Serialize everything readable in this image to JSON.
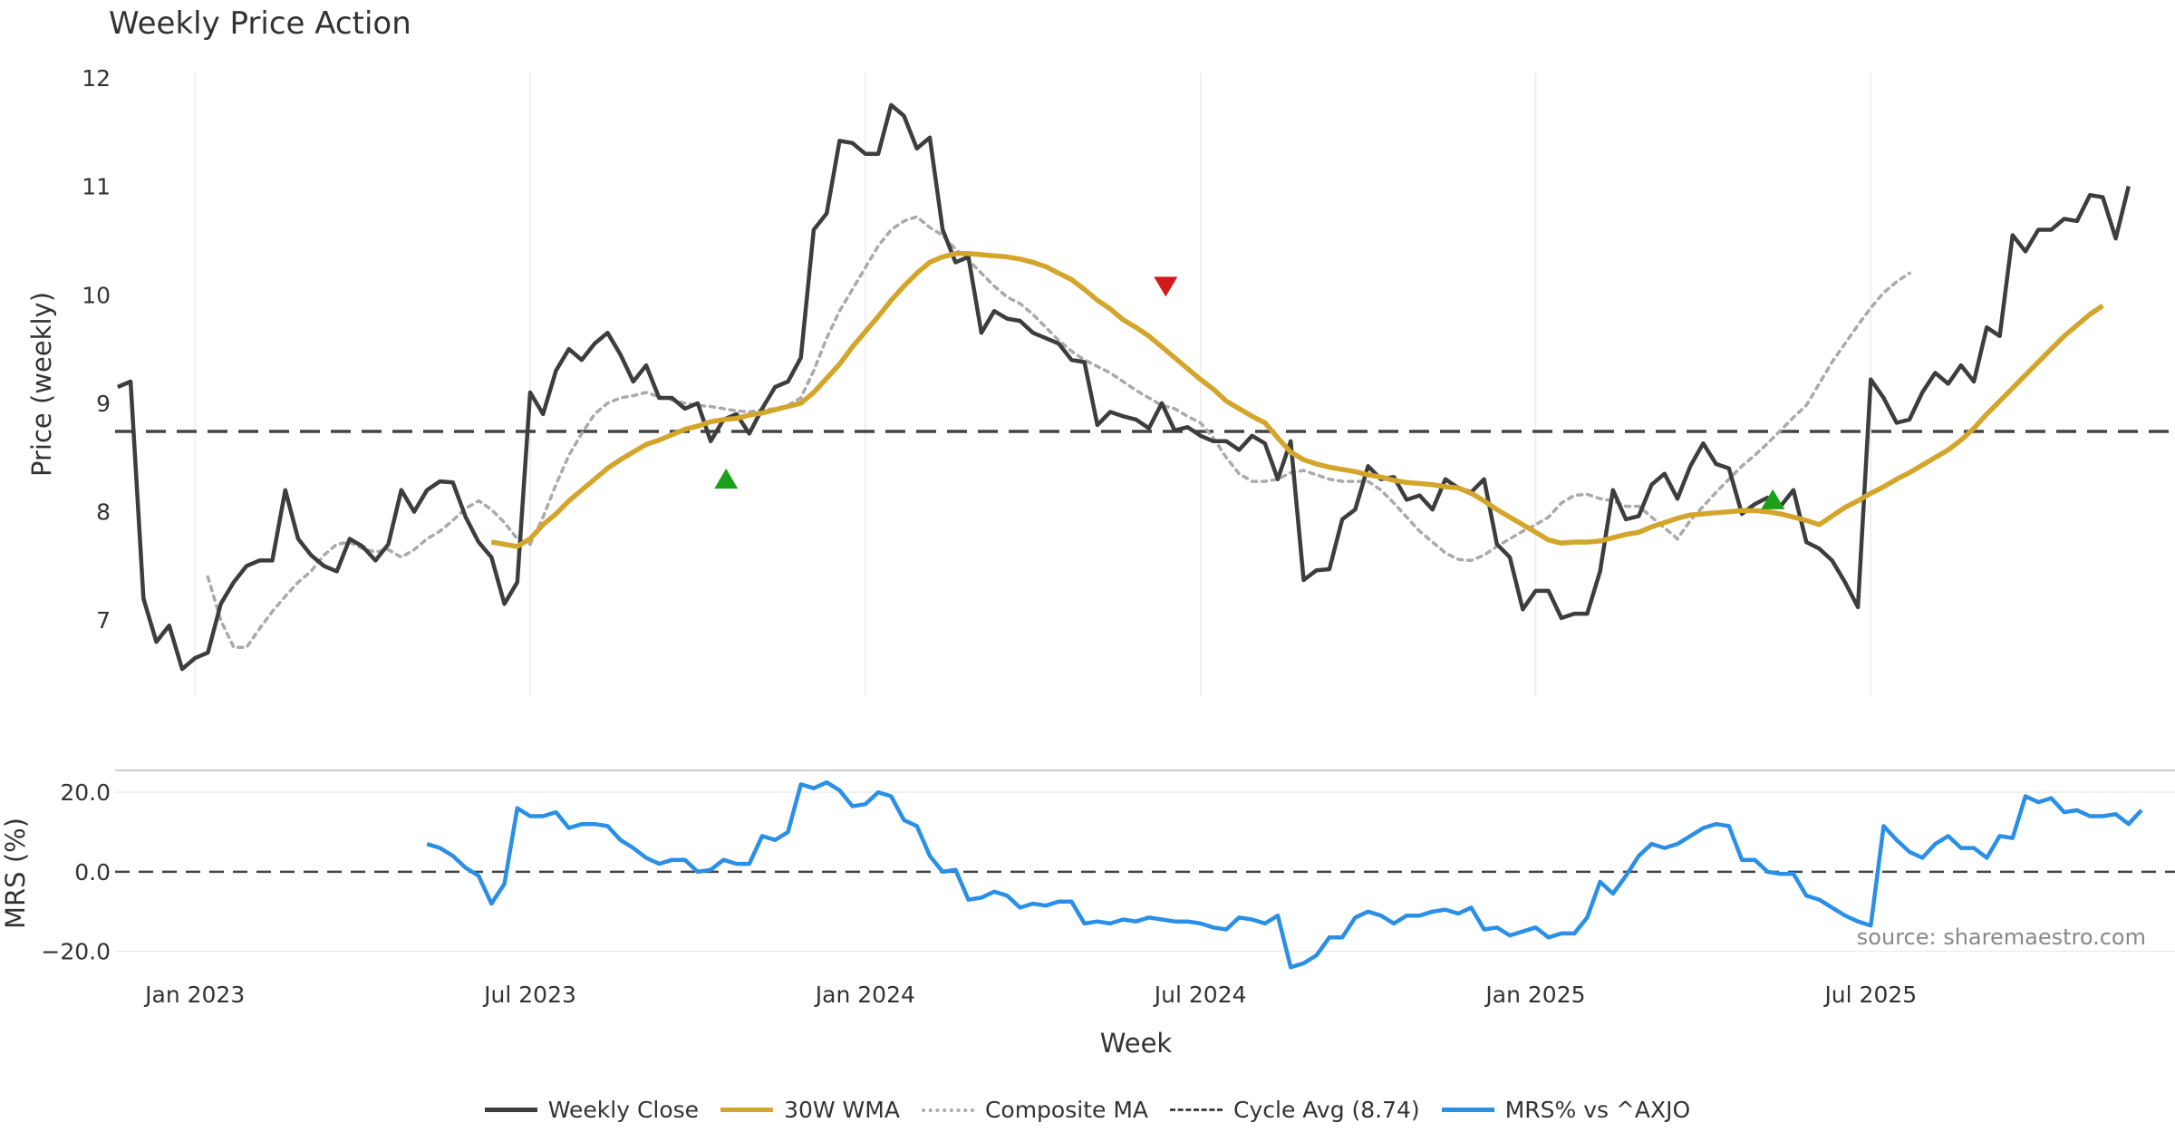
{
  "chart_data": [
    {
      "type": "line",
      "title": "Weekly Price Action",
      "ylabel": "Price (weekly)",
      "ylim": [
        6.3,
        12.05
      ],
      "yticks": [
        7,
        8,
        9,
        10,
        11,
        12
      ],
      "xlim": [
        -6.2,
        153.6
      ],
      "series": [
        {
          "name": "Weekly Close",
          "color": "#3d3d3d",
          "x_start": -6,
          "values": [
            9.15,
            9.2,
            7.2,
            6.8,
            6.95,
            6.55,
            6.65,
            6.7,
            7.15,
            7.35,
            7.5,
            7.55,
            7.55,
            8.2,
            7.75,
            7.6,
            7.5,
            7.45,
            7.75,
            7.68,
            7.55,
            7.7,
            8.2,
            8.0,
            8.2,
            8.28,
            8.27,
            7.95,
            7.72,
            7.58,
            7.15,
            7.35,
            9.1,
            8.9,
            9.3,
            9.5,
            9.4,
            9.55,
            9.65,
            9.45,
            9.2,
            9.35,
            9.05,
            9.05,
            8.95,
            9.0,
            8.65,
            8.85,
            8.9,
            8.72,
            8.95,
            9.15,
            9.2,
            9.42,
            10.6,
            10.75,
            11.42,
            11.4,
            11.3,
            11.3,
            11.75,
            11.65,
            11.35,
            11.45,
            10.6,
            10.3,
            10.35,
            9.65,
            9.85,
            9.78,
            9.76,
            9.65,
            9.6,
            9.55,
            9.4,
            9.38,
            8.8,
            8.92,
            8.88,
            8.85,
            8.77,
            9.0,
            8.75,
            8.78,
            8.7,
            8.65,
            8.65,
            8.57,
            8.7,
            8.63,
            8.3,
            8.65,
            7.37,
            7.46,
            7.47,
            7.93,
            8.02,
            8.42,
            8.3,
            8.32,
            8.11,
            8.15,
            8.02,
            8.3,
            8.22,
            8.18,
            8.3,
            7.7,
            7.58,
            7.1,
            7.27,
            7.27,
            7.02,
            7.06,
            7.06,
            7.45,
            8.2,
            7.93,
            7.96,
            8.25,
            8.35,
            8.12,
            8.42,
            8.63,
            8.44,
            8.4,
            7.98,
            8.07,
            8.13,
            8.05,
            8.2,
            7.72,
            7.66,
            7.55,
            7.35,
            7.12,
            9.22,
            9.05,
            8.82,
            8.85,
            9.1,
            9.28,
            9.18,
            9.35,
            9.2,
            9.7,
            9.62,
            10.55,
            10.4,
            10.6,
            10.6,
            10.7,
            10.68,
            10.92,
            10.9,
            10.52,
            11.0
          ]
        },
        {
          "name": "30W WMA",
          "color": "#d4a52b",
          "x_start": 23,
          "values": [
            7.72,
            7.7,
            7.68,
            7.75,
            7.88,
            7.98,
            8.1,
            8.2,
            8.3,
            8.4,
            8.48,
            8.55,
            8.62,
            8.66,
            8.71,
            8.76,
            8.79,
            8.83,
            8.85,
            8.86,
            8.89,
            8.91,
            8.94,
            8.97,
            9.0,
            9.1,
            9.23,
            9.36,
            9.52,
            9.66,
            9.8,
            9.95,
            10.08,
            10.2,
            10.3,
            10.35,
            10.38,
            10.38,
            10.37,
            10.36,
            10.35,
            10.33,
            10.3,
            10.26,
            10.2,
            10.14,
            10.05,
            9.95,
            9.87,
            9.77,
            9.7,
            9.62,
            9.52,
            9.42,
            9.32,
            9.22,
            9.13,
            9.02,
            8.95,
            8.88,
            8.82,
            8.68,
            8.55,
            8.48,
            8.44,
            8.41,
            8.39,
            8.37,
            8.34,
            8.32,
            8.29,
            8.27,
            8.26,
            8.25,
            8.23,
            8.22,
            8.17,
            8.1,
            8.02,
            7.95,
            7.88,
            7.81,
            7.74,
            7.71,
            7.72,
            7.72,
            7.73,
            7.76,
            7.79,
            7.81,
            7.86,
            7.9,
            7.94,
            7.97,
            7.98,
            7.99,
            8.0,
            8.01,
            8.01,
            8.0,
            7.98,
            7.95,
            7.92,
            7.88,
            7.96,
            8.04,
            8.1,
            8.17,
            8.23,
            8.3,
            8.36,
            8.43,
            8.5,
            8.57,
            8.66,
            8.77,
            8.9,
            9.02,
            9.14,
            9.26,
            9.38,
            9.5,
            9.62,
            9.72,
            9.82,
            9.9
          ]
        },
        {
          "name": "Composite MA",
          "color": "#aaaaaa",
          "x_start": 1,
          "values": [
            7.4,
            7.0,
            6.75,
            6.75,
            6.92,
            7.08,
            7.22,
            7.35,
            7.45,
            7.6,
            7.7,
            7.72,
            7.66,
            7.63,
            7.65,
            7.58,
            7.65,
            7.75,
            7.82,
            7.92,
            8.03,
            8.1,
            8.02,
            7.9,
            7.75,
            7.7,
            7.95,
            8.25,
            8.52,
            8.72,
            8.9,
            9.0,
            9.05,
            9.07,
            9.1,
            9.06,
            9.03,
            9.0,
            8.98,
            8.97,
            8.95,
            8.93,
            8.92,
            8.94,
            8.95,
            8.98,
            9.05,
            9.3,
            9.6,
            9.85,
            10.05,
            10.25,
            10.45,
            10.6,
            10.68,
            10.72,
            10.62,
            10.55,
            10.42,
            10.32,
            10.2,
            10.08,
            9.98,
            9.92,
            9.82,
            9.7,
            9.58,
            9.48,
            9.4,
            9.34,
            9.28,
            9.2,
            9.12,
            9.05,
            8.98,
            8.95,
            8.88,
            8.82,
            8.68,
            8.5,
            8.35,
            8.28,
            8.28,
            8.3,
            8.36,
            8.38,
            8.34,
            8.3,
            8.28,
            8.28,
            8.28,
            8.2,
            8.08,
            7.95,
            7.82,
            7.72,
            7.62,
            7.56,
            7.55,
            7.6,
            7.68,
            7.75,
            7.82,
            7.88,
            7.95,
            8.08,
            8.15,
            8.16,
            8.12,
            8.1,
            8.05,
            8.05,
            7.95,
            7.85,
            7.75,
            7.92,
            8.05,
            8.18,
            8.3,
            8.42,
            8.52,
            8.63,
            8.75,
            8.87,
            8.98,
            9.18,
            9.38,
            9.55,
            9.72,
            9.88,
            10.02,
            10.12,
            10.2
          ]
        },
        {
          "name": "Cycle Avg (8.74)",
          "color": "#444444",
          "constant": 8.74
        }
      ],
      "markers": [
        {
          "type": "buy",
          "x": 41.2,
          "y": 8.3,
          "color": "#1aa01a"
        },
        {
          "type": "sell",
          "x": 75.3,
          "y": 10.08,
          "color": "#d11a1a"
        },
        {
          "type": "buy",
          "x": 122.4,
          "y": 8.11,
          "color": "#1aa01a"
        }
      ],
      "xticks": [
        {
          "x": 0,
          "label": "Jan 2023"
        },
        {
          "x": 26,
          "label": "Jul 2023"
        },
        {
          "x": 52,
          "label": "Jan 2024"
        },
        {
          "x": 78,
          "label": "Jul 2024"
        },
        {
          "x": 104,
          "label": "Jan 2025"
        },
        {
          "x": 130,
          "label": "Jul 2025"
        }
      ]
    },
    {
      "type": "line",
      "ylabel": "MRS (%)",
      "xlabel": "Week",
      "ylim": [
        -23.5,
        25.5
      ],
      "yticks": [
        20,
        0,
        -20
      ],
      "ytick_labels": [
        "20.0",
        "0.0",
        "−20.0"
      ],
      "series": [
        {
          "name": "MRS% vs ^AXJO",
          "color": "#2a8fe6",
          "x_start": 18,
          "values": [
            7,
            6,
            4,
            1,
            -1,
            -8,
            -3,
            16,
            14,
            14,
            15,
            11,
            12,
            12,
            11.5,
            8,
            6,
            3.5,
            2,
            3,
            3,
            0,
            0.5,
            3,
            2,
            2,
            9,
            8,
            10,
            22,
            21,
            22.5,
            20.5,
            16.5,
            17,
            20,
            19,
            13,
            11.5,
            4,
            0,
            0.5,
            -7,
            -6.5,
            -5,
            -6,
            -9,
            -8,
            -8.5,
            -7.5,
            -7.5,
            -13,
            -12.5,
            -13,
            -12,
            -12.5,
            -11.5,
            -12,
            -12.5,
            -12.5,
            -13,
            -14,
            -14.5,
            -11.5,
            -12,
            -13,
            -11,
            -24,
            -23,
            -21,
            -16.5,
            -16.5,
            -11.5,
            -10,
            -11,
            -13,
            -11,
            -11,
            -10,
            -9.5,
            -10.5,
            -9,
            -14.5,
            -14,
            -16,
            -15,
            -14,
            -16.5,
            -15.5,
            -15.5,
            -11.5,
            -2.5,
            -5.5,
            -1,
            4,
            7,
            6,
            7,
            9,
            11,
            12,
            11.5,
            3,
            3,
            0,
            -0.5,
            -0.5,
            -6,
            -7,
            -9,
            -11,
            -12.5,
            -13.5,
            11.5,
            8,
            5,
            3.5,
            7,
            9,
            6,
            6,
            3.5,
            9,
            8.5,
            19,
            17.5,
            18.5,
            15,
            15.5,
            14,
            14,
            14.5,
            12,
            15.5
          ]
        },
        {
          "name": "zero",
          "color": "#444444",
          "constant": 0
        }
      ]
    }
  ],
  "legend": [
    {
      "label": "Weekly Close",
      "style": "close"
    },
    {
      "label": "30W WMA",
      "style": "wma"
    },
    {
      "label": "Composite MA",
      "style": "comp"
    },
    {
      "label": "Cycle Avg (8.74)",
      "style": "cycle"
    },
    {
      "label": "MRS% vs ^AXJO",
      "style": "mrs"
    }
  ],
  "source": "source: sharemaestro.com"
}
